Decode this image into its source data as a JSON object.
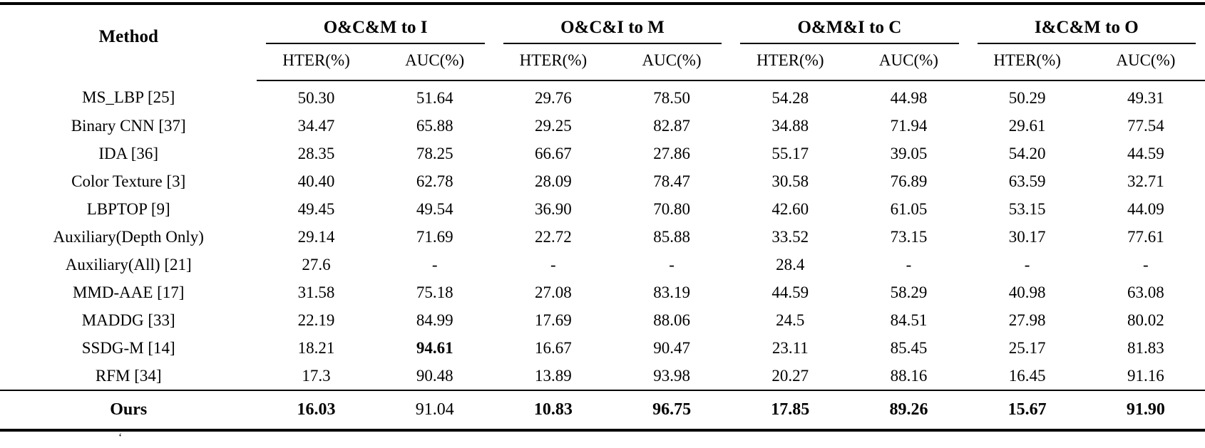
{
  "colors": {
    "text": "#000000",
    "rule": "#000000",
    "background": "#ffffff"
  },
  "table": {
    "method_header": "Method",
    "groups": [
      {
        "label": "O&C&M to I",
        "columns": [
          "HTER(%)",
          "AUC(%)"
        ]
      },
      {
        "label": "O&C&I to M",
        "columns": [
          "HTER(%)",
          "AUC(%)"
        ]
      },
      {
        "label": "O&M&I to C",
        "columns": [
          "HTER(%)",
          "AUC(%)"
        ]
      },
      {
        "label": "I&C&M to O",
        "columns": [
          "HTER(%)",
          "AUC(%)"
        ]
      }
    ],
    "rows": [
      {
        "method": "MS_LBP [25]",
        "method_bold": false,
        "values": [
          "50.30",
          "51.64",
          "29.76",
          "78.50",
          "54.28",
          "44.98",
          "50.29",
          "49.31"
        ],
        "bold": [
          false,
          false,
          false,
          false,
          false,
          false,
          false,
          false
        ]
      },
      {
        "method": "Binary CNN [37]",
        "method_bold": false,
        "values": [
          "34.47",
          "65.88",
          "29.25",
          "82.87",
          "34.88",
          "71.94",
          "29.61",
          "77.54"
        ],
        "bold": [
          false,
          false,
          false,
          false,
          false,
          false,
          false,
          false
        ]
      },
      {
        "method": "IDA [36]",
        "method_bold": false,
        "values": [
          "28.35",
          "78.25",
          "66.67",
          "27.86",
          "55.17",
          "39.05",
          "54.20",
          "44.59"
        ],
        "bold": [
          false,
          false,
          false,
          false,
          false,
          false,
          false,
          false
        ]
      },
      {
        "method": "Color Texture [3]",
        "method_bold": false,
        "values": [
          "40.40",
          "62.78",
          "28.09",
          "78.47",
          "30.58",
          "76.89",
          "63.59",
          "32.71"
        ],
        "bold": [
          false,
          false,
          false,
          false,
          false,
          false,
          false,
          false
        ]
      },
      {
        "method": "LBPTOP [9]",
        "method_bold": false,
        "values": [
          "49.45",
          "49.54",
          "36.90",
          "70.80",
          "42.60",
          "61.05",
          "53.15",
          "44.09"
        ],
        "bold": [
          false,
          false,
          false,
          false,
          false,
          false,
          false,
          false
        ]
      },
      {
        "method": "Auxiliary(Depth Only)",
        "method_bold": false,
        "values": [
          "29.14",
          "71.69",
          "22.72",
          "85.88",
          "33.52",
          "73.15",
          "30.17",
          "77.61"
        ],
        "bold": [
          false,
          false,
          false,
          false,
          false,
          false,
          false,
          false
        ]
      },
      {
        "method": "Auxiliary(All) [21]",
        "method_bold": false,
        "values": [
          "27.6",
          "-",
          "-",
          "-",
          "28.4",
          "-",
          "-",
          "-"
        ],
        "bold": [
          false,
          false,
          false,
          false,
          false,
          false,
          false,
          false
        ]
      },
      {
        "method": "MMD-AAE [17]",
        "method_bold": false,
        "values": [
          "31.58",
          "75.18",
          "27.08",
          "83.19",
          "44.59",
          "58.29",
          "40.98",
          "63.08"
        ],
        "bold": [
          false,
          false,
          false,
          false,
          false,
          false,
          false,
          false
        ]
      },
      {
        "method": "MADDG [33]",
        "method_bold": false,
        "values": [
          "22.19",
          "84.99",
          "17.69",
          "88.06",
          "24.5",
          "84.51",
          "27.98",
          "80.02"
        ],
        "bold": [
          false,
          false,
          false,
          false,
          false,
          false,
          false,
          false
        ]
      },
      {
        "method": "SSDG-M [14]",
        "method_bold": false,
        "values": [
          "18.21",
          "94.61",
          "16.67",
          "90.47",
          "23.11",
          "85.45",
          "25.17",
          "81.83"
        ],
        "bold": [
          false,
          true,
          false,
          false,
          false,
          false,
          false,
          false
        ]
      },
      {
        "method": "RFM [34]",
        "method_bold": false,
        "values": [
          "17.3",
          "90.48",
          "13.89",
          "93.98",
          "20.27",
          "88.16",
          "16.45",
          "91.16"
        ],
        "bold": [
          false,
          false,
          false,
          false,
          false,
          false,
          false,
          false
        ]
      }
    ],
    "ours_row": {
      "method": "Ours",
      "method_bold": true,
      "values": [
        "16.03",
        "91.04",
        "10.83",
        "96.75",
        "17.85",
        "89.26",
        "15.67",
        "91.90"
      ],
      "bold": [
        true,
        false,
        true,
        true,
        true,
        true,
        true,
        true
      ]
    }
  },
  "footnote_fragment": "‘"
}
